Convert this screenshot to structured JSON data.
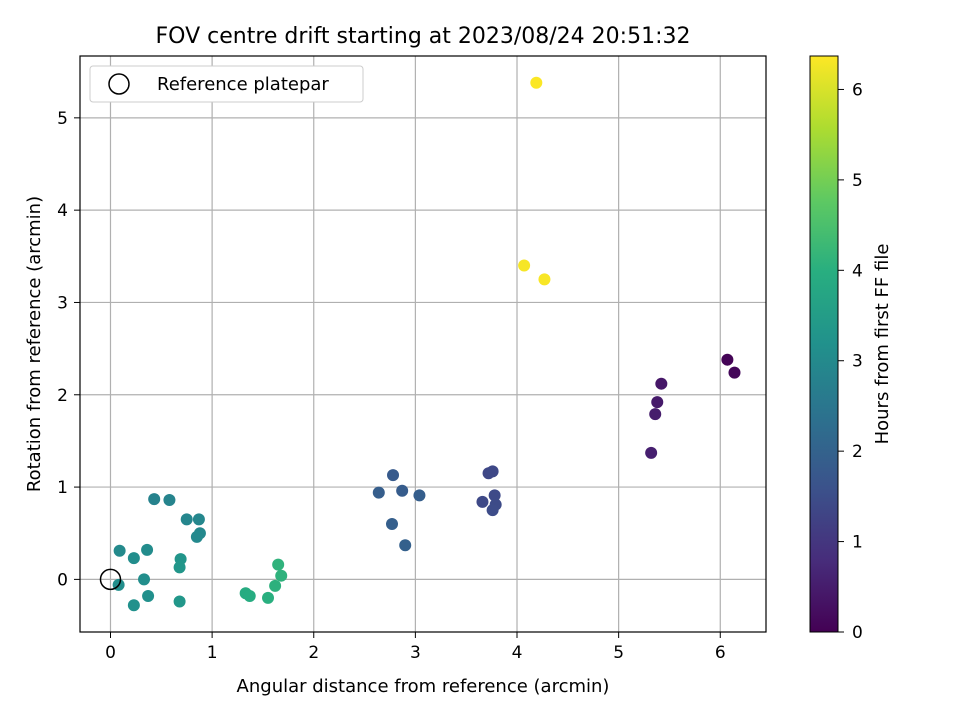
{
  "chart_data": {
    "type": "scatter",
    "title": "FOV centre drift starting at 2023/08/24 20:51:32",
    "xlabel": "Angular distance from reference (arcmin)",
    "ylabel": "Rotation from reference (arcmin)",
    "xlim": [
      -0.3,
      6.45
    ],
    "ylim": [
      -0.57,
      5.67
    ],
    "xticks": [
      "0",
      "1",
      "2",
      "3",
      "4",
      "5",
      "6"
    ],
    "yticks": [
      "0",
      "1",
      "2",
      "3",
      "4",
      "5"
    ],
    "grid": true,
    "legend": {
      "placement": "top-left",
      "label": "Reference platepar"
    },
    "reference_point": {
      "x": 0,
      "y": 0
    },
    "colorbar": {
      "label": "Hours from first FF file",
      "range": [
        0,
        6.37
      ],
      "ticks": [
        "0",
        "1",
        "2",
        "3",
        "4",
        "5",
        "6"
      ],
      "colormap": "viridis"
    },
    "points": [
      {
        "x": 6.07,
        "y": 2.38,
        "t": 0.05
      },
      {
        "x": 6.14,
        "y": 2.24,
        "t": 0.1
      },
      {
        "x": 5.42,
        "y": 2.12,
        "t": 0.4
      },
      {
        "x": 5.38,
        "y": 1.92,
        "t": 0.45
      },
      {
        "x": 5.36,
        "y": 1.79,
        "t": 0.5
      },
      {
        "x": 5.32,
        "y": 1.37,
        "t": 0.55
      },
      {
        "x": 3.72,
        "y": 1.15,
        "t": 1.35
      },
      {
        "x": 3.76,
        "y": 1.17,
        "t": 1.37
      },
      {
        "x": 3.66,
        "y": 0.84,
        "t": 1.4
      },
      {
        "x": 3.78,
        "y": 0.91,
        "t": 1.42
      },
      {
        "x": 3.79,
        "y": 0.81,
        "t": 1.45
      },
      {
        "x": 3.76,
        "y": 0.75,
        "t": 1.47
      },
      {
        "x": 2.78,
        "y": 1.13,
        "t": 1.8
      },
      {
        "x": 2.87,
        "y": 0.96,
        "t": 1.85
      },
      {
        "x": 2.64,
        "y": 0.94,
        "t": 1.88
      },
      {
        "x": 3.04,
        "y": 0.91,
        "t": 1.9
      },
      {
        "x": 2.77,
        "y": 0.6,
        "t": 1.92
      },
      {
        "x": 2.9,
        "y": 0.37,
        "t": 1.95
      },
      {
        "x": 0.43,
        "y": 0.87,
        "t": 2.8
      },
      {
        "x": 0.58,
        "y": 0.86,
        "t": 2.85
      },
      {
        "x": 0.75,
        "y": 0.65,
        "t": 2.9
      },
      {
        "x": 0.87,
        "y": 0.65,
        "t": 2.92
      },
      {
        "x": 0.88,
        "y": 0.5,
        "t": 2.95
      },
      {
        "x": 0.85,
        "y": 0.46,
        "t": 2.97
      },
      {
        "x": 0.09,
        "y": 0.31,
        "t": 3.0
      },
      {
        "x": 0.36,
        "y": 0.32,
        "t": 3.05
      },
      {
        "x": 0.23,
        "y": 0.23,
        "t": 3.08
      },
      {
        "x": 0.33,
        "y": 0.0,
        "t": 3.1
      },
      {
        "x": 0.08,
        "y": -0.06,
        "t": 3.12
      },
      {
        "x": 0.37,
        "y": -0.18,
        "t": 3.15
      },
      {
        "x": 0.23,
        "y": -0.28,
        "t": 3.18
      },
      {
        "x": 0.69,
        "y": 0.22,
        "t": 3.3
      },
      {
        "x": 0.68,
        "y": 0.13,
        "t": 3.33
      },
      {
        "x": 0.68,
        "y": -0.24,
        "t": 3.35
      },
      {
        "x": 1.33,
        "y": -0.15,
        "t": 3.9
      },
      {
        "x": 1.37,
        "y": -0.18,
        "t": 3.92
      },
      {
        "x": 1.55,
        "y": -0.2,
        "t": 4.0
      },
      {
        "x": 1.62,
        "y": -0.07,
        "t": 4.05
      },
      {
        "x": 1.68,
        "y": 0.04,
        "t": 4.08
      },
      {
        "x": 1.65,
        "y": 0.16,
        "t": 4.1
      },
      {
        "x": 4.07,
        "y": 3.4,
        "t": 6.3
      },
      {
        "x": 4.27,
        "y": 3.25,
        "t": 6.32
      },
      {
        "x": 4.19,
        "y": 5.38,
        "t": 6.35
      }
    ]
  }
}
